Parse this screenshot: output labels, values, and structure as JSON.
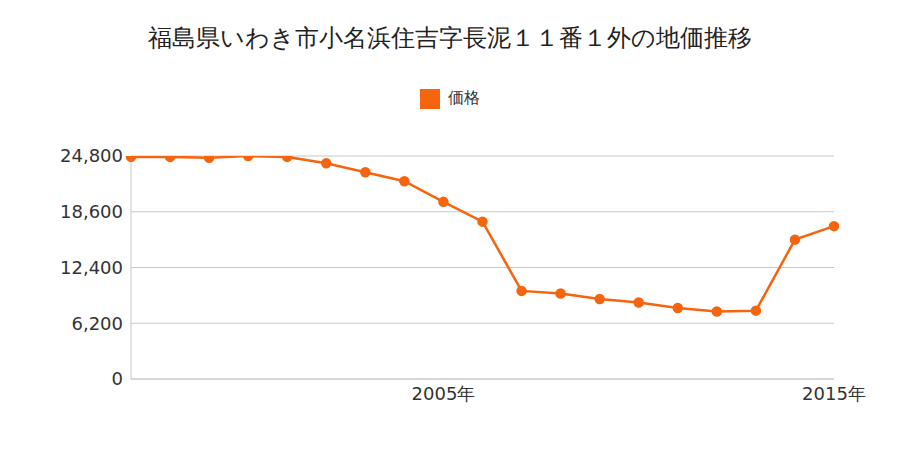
{
  "chart_data": {
    "type": "line",
    "title": "福島県いわき市小名浜住吉字長泥１１番１外の地価推移",
    "categories": [
      null,
      null,
      null,
      null,
      null,
      null,
      null,
      null,
      "2005年",
      null,
      null,
      null,
      null,
      null,
      null,
      null,
      null,
      null,
      "2015年"
    ],
    "series": [
      {
        "name": "価格",
        "color": "#f5640f",
        "values": [
          24700,
          24700,
          24600,
          24800,
          24700,
          24000,
          23000,
          22000,
          19700,
          17500,
          9800,
          9500,
          8900,
          8500,
          7900,
          7500,
          7600,
          15500,
          17000
        ]
      }
    ],
    "ylim": [
      0,
      24800
    ],
    "yticks": [
      0,
      {
        "value": 6200,
        "label": "6,200"
      },
      {
        "value": 12400,
        "label": "12,400"
      },
      {
        "value": 18600,
        "label": "18,600"
      },
      {
        "value": 24800,
        "label": "24,800"
      }
    ],
    "grid": true,
    "legend": "top",
    "marker": "circle"
  }
}
